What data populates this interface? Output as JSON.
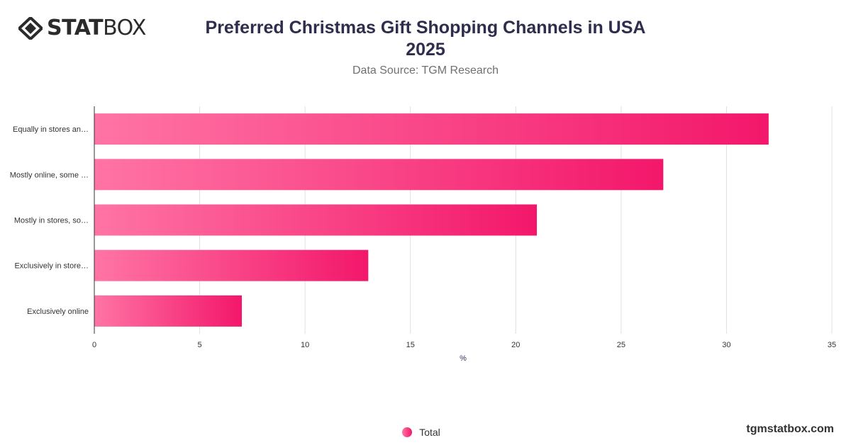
{
  "logo": {
    "text_bold": "STAT",
    "text_light": "BOX"
  },
  "title_line1": "Preferred Christmas Gift Shopping Channels in USA",
  "title_line2": "2025",
  "subtitle": "Data Source: TGM Research",
  "footer": "tgmstatbox.com",
  "colors": {
    "bar_start": "#ff74a4",
    "bar_end": "#f3176b",
    "grid": "#e0e0e0",
    "axis": "#333333"
  },
  "chart_data": {
    "type": "bar",
    "orientation": "horizontal",
    "categories": [
      "Equally in stores an…",
      "Mostly online, some …",
      "Mostly in stores, so…",
      "Exclusively in store…",
      "Exclusively online"
    ],
    "series": [
      {
        "name": "Total",
        "values": [
          32,
          27,
          21,
          13,
          7
        ]
      }
    ],
    "xlabel": "%",
    "xlim": [
      0,
      35
    ],
    "xticks": [
      0,
      5,
      10,
      15,
      20,
      25,
      30,
      35
    ],
    "grid": true,
    "legend_position": "bottom"
  }
}
